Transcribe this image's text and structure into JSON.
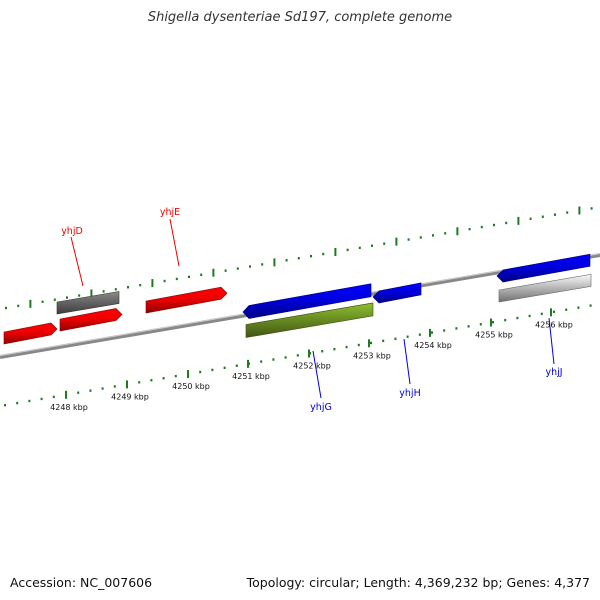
{
  "title": "Shigella dysenteriae Sd197, complete genome",
  "footer": {
    "accession": "Accession: NC_007606",
    "summary": "Topology: circular; Length: 4,369,232 bp; Genes: 4,377"
  },
  "colors": {
    "backbone": "#888888",
    "tick": "#1f7a1f",
    "forward_gene": "#ee0000",
    "reverse_gene": "#0000dd",
    "pseudo_dark": "#666666",
    "pseudo_light": "#bbbbbb",
    "rna_gene": "#6b8e23"
  },
  "ruler": {
    "unit": "kbp",
    "labels": [
      "4248 kbp",
      "4249 kbp",
      "4250 kbp",
      "4251 kbp",
      "4252 kbp",
      "4253 kbp",
      "4254 kbp",
      "4255 kbp",
      "4256 kbp"
    ]
  },
  "genes": [
    {
      "name": "",
      "strand": "+",
      "style": "forward_gene"
    },
    {
      "name": "",
      "strand": "+",
      "style": "forward_gene"
    },
    {
      "name": "yhjD",
      "strand": "+",
      "style": "pseudo_dark"
    },
    {
      "name": "yhjE",
      "strand": "+",
      "style": "forward_gene"
    },
    {
      "name": "",
      "strand": "-",
      "style": "reverse_gene"
    },
    {
      "name": "yhjG",
      "strand": "-",
      "style": "rna_gene"
    },
    {
      "name": "yhjH",
      "strand": "-",
      "style": "reverse_gene"
    },
    {
      "name": "",
      "strand": "-",
      "style": "reverse_gene"
    },
    {
      "name": "yhjJ",
      "strand": "-",
      "style": "pseudo_light"
    }
  ]
}
